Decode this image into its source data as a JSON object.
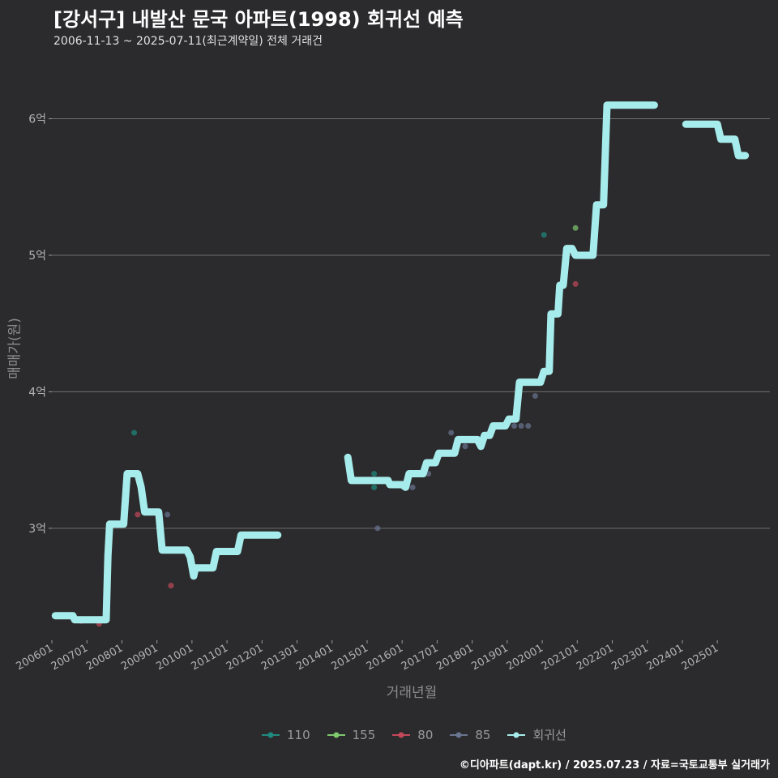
{
  "chart_data": {
    "type": "line",
    "title": "[강서구] 내발산 문국 아파트(1998) 회귀선 예측",
    "subtitle": "2006-11-13 ~ 2025-07-11(최근계약일) 전체 거래건",
    "xlabel": "거래년월",
    "ylabel": "매매가(원)",
    "x_ticks": [
      "200601",
      "200701",
      "200801",
      "200901",
      "201001",
      "201101",
      "201201",
      "201301",
      "201401",
      "201501",
      "201601",
      "201701",
      "201801",
      "201901",
      "202001",
      "202101",
      "202201",
      "202301",
      "202401",
      "202501"
    ],
    "y_ticks": [
      {
        "value": 3,
        "label": "3억"
      },
      {
        "value": 4,
        "label": "4억"
      },
      {
        "value": 5,
        "label": "5억"
      },
      {
        "value": 6,
        "label": "6억"
      }
    ],
    "xlim": [
      2006.0,
      2026.5
    ],
    "ylim": [
      2.18,
      6.3
    ],
    "legend": [
      {
        "name": "110",
        "color": "#1f8a7f"
      },
      {
        "name": "155",
        "color": "#7fc96f"
      },
      {
        "name": "80",
        "color": "#c4485a"
      },
      {
        "name": "85",
        "color": "#6a7591"
      },
      {
        "name": "회귀선",
        "color": "#a7ecec"
      }
    ],
    "scatter": [
      {
        "series": "80",
        "x": 2006.85,
        "y": 2.32
      },
      {
        "series": "80",
        "x": 2007.35,
        "y": 2.3
      },
      {
        "series": "110",
        "x": 2008.35,
        "y": 3.7
      },
      {
        "series": "80",
        "x": 2008.45,
        "y": 3.1
      },
      {
        "series": "85",
        "x": 2009.3,
        "y": 3.1
      },
      {
        "series": "80",
        "x": 2009.4,
        "y": 2.58
      },
      {
        "series": "110",
        "x": 2015.2,
        "y": 3.4
      },
      {
        "series": "110",
        "x": 2015.2,
        "y": 3.3
      },
      {
        "series": "85",
        "x": 2015.3,
        "y": 3.0
      },
      {
        "series": "85",
        "x": 2016.3,
        "y": 3.3
      },
      {
        "series": "85",
        "x": 2016.75,
        "y": 3.4
      },
      {
        "series": "85",
        "x": 2017.4,
        "y": 3.7
      },
      {
        "series": "85",
        "x": 2017.8,
        "y": 3.6
      },
      {
        "series": "85",
        "x": 2019.2,
        "y": 3.75
      },
      {
        "series": "85",
        "x": 2019.4,
        "y": 3.75
      },
      {
        "series": "85",
        "x": 2019.6,
        "y": 3.75
      },
      {
        "series": "85",
        "x": 2019.8,
        "y": 3.97
      },
      {
        "series": "110",
        "x": 2020.05,
        "y": 5.15
      },
      {
        "series": "155",
        "x": 2020.95,
        "y": 5.2
      },
      {
        "series": "80",
        "x": 2020.95,
        "y": 4.79
      }
    ],
    "regression_segments": [
      [
        [
          2006.1,
          2.36
        ],
        [
          2006.6,
          2.36
        ],
        [
          2006.65,
          2.33
        ],
        [
          2007.55,
          2.33
        ],
        [
          2007.6,
          2.8
        ],
        [
          2007.65,
          3.03
        ],
        [
          2008.05,
          3.03
        ],
        [
          2008.15,
          3.4
        ],
        [
          2008.45,
          3.4
        ],
        [
          2008.55,
          3.3
        ],
        [
          2008.65,
          3.12
        ],
        [
          2009.05,
          3.12
        ],
        [
          2009.15,
          2.84
        ],
        [
          2009.85,
          2.84
        ],
        [
          2009.95,
          2.79
        ],
        [
          2010.05,
          2.65
        ],
        [
          2010.1,
          2.71
        ],
        [
          2010.6,
          2.71
        ],
        [
          2010.7,
          2.83
        ],
        [
          2011.3,
          2.83
        ],
        [
          2011.4,
          2.95
        ],
        [
          2012.45,
          2.95
        ]
      ],
      [
        [
          2014.45,
          3.52
        ],
        [
          2014.55,
          3.35
        ],
        [
          2015.6,
          3.35
        ],
        [
          2015.65,
          3.32
        ],
        [
          2016.0,
          3.32
        ],
        [
          2016.1,
          3.3
        ],
        [
          2016.2,
          3.4
        ],
        [
          2016.6,
          3.4
        ],
        [
          2016.7,
          3.48
        ],
        [
          2016.95,
          3.48
        ],
        [
          2017.05,
          3.55
        ],
        [
          2017.5,
          3.55
        ],
        [
          2017.6,
          3.65
        ],
        [
          2018.15,
          3.65
        ],
        [
          2018.25,
          3.6
        ],
        [
          2018.35,
          3.68
        ],
        [
          2018.5,
          3.68
        ],
        [
          2018.6,
          3.75
        ],
        [
          2018.95,
          3.75
        ],
        [
          2019.05,
          3.8
        ],
        [
          2019.25,
          3.8
        ],
        [
          2019.35,
          4.07
        ],
        [
          2019.95,
          4.07
        ],
        [
          2020.05,
          4.15
        ],
        [
          2020.2,
          4.15
        ],
        [
          2020.25,
          4.57
        ],
        [
          2020.45,
          4.57
        ],
        [
          2020.5,
          4.78
        ],
        [
          2020.6,
          4.78
        ],
        [
          2020.7,
          5.05
        ],
        [
          2020.85,
          5.05
        ],
        [
          2020.95,
          5.0
        ],
        [
          2021.45,
          5.0
        ],
        [
          2021.55,
          5.37
        ],
        [
          2021.75,
          5.37
        ],
        [
          2021.85,
          6.1
        ],
        [
          2023.2,
          6.1
        ]
      ],
      [
        [
          2024.1,
          5.96
        ],
        [
          2025.0,
          5.96
        ],
        [
          2025.1,
          5.85
        ],
        [
          2025.5,
          5.85
        ],
        [
          2025.6,
          5.73
        ],
        [
          2025.8,
          5.73
        ]
      ]
    ]
  },
  "footer": "©디아파트(dapt.kr) / 2025.07.23 / 자료=국토교통부 실거래가"
}
